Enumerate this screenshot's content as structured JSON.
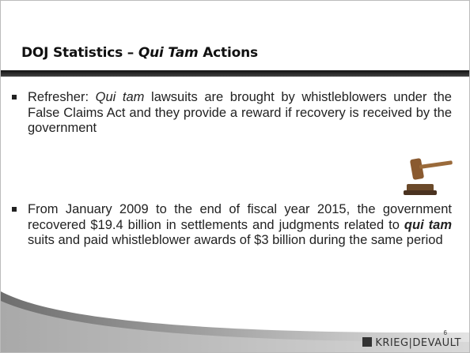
{
  "slide": {
    "title": {
      "parts": [
        "DOJ Statistics – ",
        "Qui Tam",
        " Actions"
      ]
    },
    "bullets": [
      {
        "parts": [
          "Refresher: ",
          "Qui tam",
          " lawsuits are brought by whistleblowers under the False Claims Act and they provide a reward if recovery is received by the government"
        ]
      },
      {
        "parts": [
          "From January 2009 to the end of fiscal year 2015, the government recovered $19.4 billion in settlements and judgments related to ",
          "qui tam",
          " suits and paid whistleblower awards of $3 billion during the same period"
        ]
      }
    ],
    "page_number": "6",
    "logo": "KRIEG|DEVAULT"
  }
}
